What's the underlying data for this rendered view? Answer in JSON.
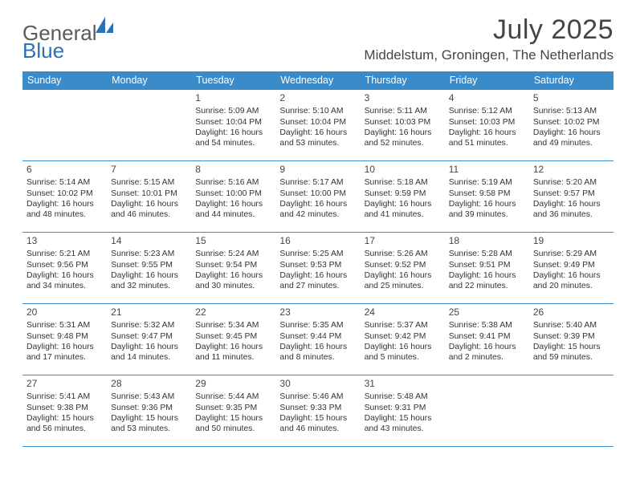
{
  "logo": {
    "general": "General",
    "blue": "Blue"
  },
  "title": "July 2025",
  "location": "Middelstum, Groningen, The Netherlands",
  "colors": {
    "header_bg": "#3b8bc8",
    "header_text": "#ffffff",
    "rule": "#3b8bc8",
    "body_text": "#333333",
    "title_text": "#454545",
    "logo_gray": "#5a5a5a",
    "logo_blue": "#2a72b5",
    "background": "#ffffff"
  },
  "typography": {
    "title_fontsize": 34,
    "location_fontsize": 17,
    "dayheader_fontsize": 12.5,
    "daynum_fontsize": 12,
    "body_fontsize": 10.4
  },
  "day_headers": [
    "Sunday",
    "Monday",
    "Tuesday",
    "Wednesday",
    "Thursday",
    "Friday",
    "Saturday"
  ],
  "weeks": [
    [
      {
        "num": "",
        "sunrise": "",
        "sunset": "",
        "daylight": ""
      },
      {
        "num": "",
        "sunrise": "",
        "sunset": "",
        "daylight": ""
      },
      {
        "num": "1",
        "sunrise": "Sunrise: 5:09 AM",
        "sunset": "Sunset: 10:04 PM",
        "daylight": "Daylight: 16 hours and 54 minutes."
      },
      {
        "num": "2",
        "sunrise": "Sunrise: 5:10 AM",
        "sunset": "Sunset: 10:04 PM",
        "daylight": "Daylight: 16 hours and 53 minutes."
      },
      {
        "num": "3",
        "sunrise": "Sunrise: 5:11 AM",
        "sunset": "Sunset: 10:03 PM",
        "daylight": "Daylight: 16 hours and 52 minutes."
      },
      {
        "num": "4",
        "sunrise": "Sunrise: 5:12 AM",
        "sunset": "Sunset: 10:03 PM",
        "daylight": "Daylight: 16 hours and 51 minutes."
      },
      {
        "num": "5",
        "sunrise": "Sunrise: 5:13 AM",
        "sunset": "Sunset: 10:02 PM",
        "daylight": "Daylight: 16 hours and 49 minutes."
      }
    ],
    [
      {
        "num": "6",
        "sunrise": "Sunrise: 5:14 AM",
        "sunset": "Sunset: 10:02 PM",
        "daylight": "Daylight: 16 hours and 48 minutes."
      },
      {
        "num": "7",
        "sunrise": "Sunrise: 5:15 AM",
        "sunset": "Sunset: 10:01 PM",
        "daylight": "Daylight: 16 hours and 46 minutes."
      },
      {
        "num": "8",
        "sunrise": "Sunrise: 5:16 AM",
        "sunset": "Sunset: 10:00 PM",
        "daylight": "Daylight: 16 hours and 44 minutes."
      },
      {
        "num": "9",
        "sunrise": "Sunrise: 5:17 AM",
        "sunset": "Sunset: 10:00 PM",
        "daylight": "Daylight: 16 hours and 42 minutes."
      },
      {
        "num": "10",
        "sunrise": "Sunrise: 5:18 AM",
        "sunset": "Sunset: 9:59 PM",
        "daylight": "Daylight: 16 hours and 41 minutes."
      },
      {
        "num": "11",
        "sunrise": "Sunrise: 5:19 AM",
        "sunset": "Sunset: 9:58 PM",
        "daylight": "Daylight: 16 hours and 39 minutes."
      },
      {
        "num": "12",
        "sunrise": "Sunrise: 5:20 AM",
        "sunset": "Sunset: 9:57 PM",
        "daylight": "Daylight: 16 hours and 36 minutes."
      }
    ],
    [
      {
        "num": "13",
        "sunrise": "Sunrise: 5:21 AM",
        "sunset": "Sunset: 9:56 PM",
        "daylight": "Daylight: 16 hours and 34 minutes."
      },
      {
        "num": "14",
        "sunrise": "Sunrise: 5:23 AM",
        "sunset": "Sunset: 9:55 PM",
        "daylight": "Daylight: 16 hours and 32 minutes."
      },
      {
        "num": "15",
        "sunrise": "Sunrise: 5:24 AM",
        "sunset": "Sunset: 9:54 PM",
        "daylight": "Daylight: 16 hours and 30 minutes."
      },
      {
        "num": "16",
        "sunrise": "Sunrise: 5:25 AM",
        "sunset": "Sunset: 9:53 PM",
        "daylight": "Daylight: 16 hours and 27 minutes."
      },
      {
        "num": "17",
        "sunrise": "Sunrise: 5:26 AM",
        "sunset": "Sunset: 9:52 PM",
        "daylight": "Daylight: 16 hours and 25 minutes."
      },
      {
        "num": "18",
        "sunrise": "Sunrise: 5:28 AM",
        "sunset": "Sunset: 9:51 PM",
        "daylight": "Daylight: 16 hours and 22 minutes."
      },
      {
        "num": "19",
        "sunrise": "Sunrise: 5:29 AM",
        "sunset": "Sunset: 9:49 PM",
        "daylight": "Daylight: 16 hours and 20 minutes."
      }
    ],
    [
      {
        "num": "20",
        "sunrise": "Sunrise: 5:31 AM",
        "sunset": "Sunset: 9:48 PM",
        "daylight": "Daylight: 16 hours and 17 minutes."
      },
      {
        "num": "21",
        "sunrise": "Sunrise: 5:32 AM",
        "sunset": "Sunset: 9:47 PM",
        "daylight": "Daylight: 16 hours and 14 minutes."
      },
      {
        "num": "22",
        "sunrise": "Sunrise: 5:34 AM",
        "sunset": "Sunset: 9:45 PM",
        "daylight": "Daylight: 16 hours and 11 minutes."
      },
      {
        "num": "23",
        "sunrise": "Sunrise: 5:35 AM",
        "sunset": "Sunset: 9:44 PM",
        "daylight": "Daylight: 16 hours and 8 minutes."
      },
      {
        "num": "24",
        "sunrise": "Sunrise: 5:37 AM",
        "sunset": "Sunset: 9:42 PM",
        "daylight": "Daylight: 16 hours and 5 minutes."
      },
      {
        "num": "25",
        "sunrise": "Sunrise: 5:38 AM",
        "sunset": "Sunset: 9:41 PM",
        "daylight": "Daylight: 16 hours and 2 minutes."
      },
      {
        "num": "26",
        "sunrise": "Sunrise: 5:40 AM",
        "sunset": "Sunset: 9:39 PM",
        "daylight": "Daylight: 15 hours and 59 minutes."
      }
    ],
    [
      {
        "num": "27",
        "sunrise": "Sunrise: 5:41 AM",
        "sunset": "Sunset: 9:38 PM",
        "daylight": "Daylight: 15 hours and 56 minutes."
      },
      {
        "num": "28",
        "sunrise": "Sunrise: 5:43 AM",
        "sunset": "Sunset: 9:36 PM",
        "daylight": "Daylight: 15 hours and 53 minutes."
      },
      {
        "num": "29",
        "sunrise": "Sunrise: 5:44 AM",
        "sunset": "Sunset: 9:35 PM",
        "daylight": "Daylight: 15 hours and 50 minutes."
      },
      {
        "num": "30",
        "sunrise": "Sunrise: 5:46 AM",
        "sunset": "Sunset: 9:33 PM",
        "daylight": "Daylight: 15 hours and 46 minutes."
      },
      {
        "num": "31",
        "sunrise": "Sunrise: 5:48 AM",
        "sunset": "Sunset: 9:31 PM",
        "daylight": "Daylight: 15 hours and 43 minutes."
      },
      {
        "num": "",
        "sunrise": "",
        "sunset": "",
        "daylight": ""
      },
      {
        "num": "",
        "sunrise": "",
        "sunset": "",
        "daylight": ""
      }
    ]
  ]
}
